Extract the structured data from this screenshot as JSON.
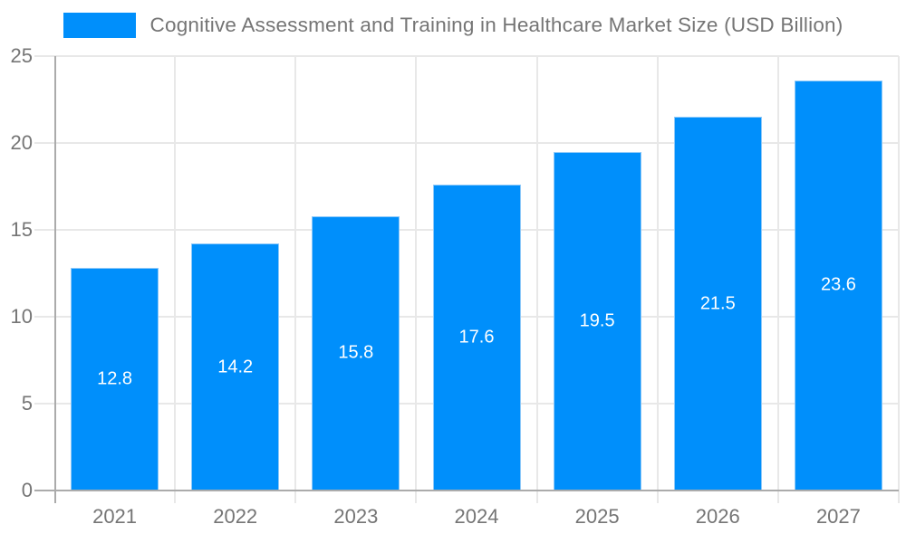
{
  "chart_data": {
    "type": "bar",
    "title": "Cognitive Assessment and Training in Healthcare Market Size (USD Billion)",
    "legend": {
      "label": "Cognitive Assessment and Training in Healthcare Market Size (USD Billion)",
      "position": "top",
      "marker_color": "#008FFB"
    },
    "categories": [
      "2021",
      "2022",
      "2023",
      "2024",
      "2025",
      "2026",
      "2027"
    ],
    "values": [
      12.8,
      14.2,
      15.8,
      17.6,
      19.5,
      21.5,
      23.6
    ],
    "value_labels": [
      "12.8",
      "14.2",
      "15.8",
      "17.6",
      "19.5",
      "21.5",
      "23.6"
    ],
    "xlabel": "",
    "ylabel": "",
    "ylim": [
      0,
      25
    ],
    "yticks": [
      0,
      5,
      10,
      15,
      20,
      25
    ],
    "grid": true,
    "colors": {
      "bar_fill": "#008FFB",
      "bar_stroke": "#8ec9f9",
      "value_label_text": "#ffffff",
      "axis_text": "#757575",
      "title_text": "#757575",
      "gridline": "#e8e8e8",
      "axis_line": "#ababab",
      "background": "#ffffff"
    }
  }
}
